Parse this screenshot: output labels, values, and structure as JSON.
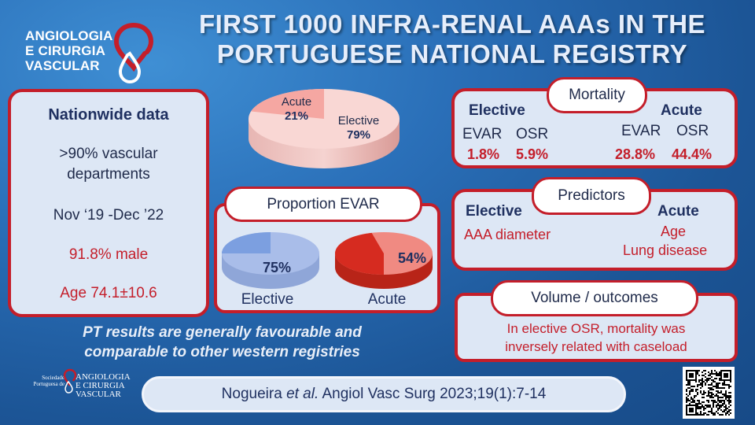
{
  "logo": {
    "lines": [
      "ANGIOLOGIA",
      "E CIRURGIA",
      "VASCULAR"
    ]
  },
  "title": {
    "line1": "FIRST 1000 INFRA-RENAL AAAs IN THE",
    "line2": "PORTUGUESE NATIONAL REGISTRY"
  },
  "nationwide": {
    "heading": "Nationwide data",
    "departments_line1": ">90% vascular",
    "departments_line2": "departments",
    "period": "Nov ‘19 -Dec ’22",
    "male": "91.8% male",
    "age": "Age 74.1±10.6"
  },
  "admission_pie": {
    "slices": [
      {
        "label": "Acute",
        "value_text": "21%",
        "value": 21,
        "color": "#f5a7a2"
      },
      {
        "label": "Elective",
        "value_text": "79%",
        "value": 79,
        "color": "#f9d7d4"
      }
    ]
  },
  "proportion_evar": {
    "title": "Proportion EVAR",
    "elective": {
      "label": "Elective",
      "value_text": "75%",
      "value": 75,
      "color": "#a9bde9",
      "accent": "#7c9fe0"
    },
    "acute": {
      "label": "Acute",
      "value_text": "54%",
      "value": 54,
      "color": "#f08a82",
      "accent": "#d62b20"
    }
  },
  "mortality": {
    "title": "Mortality",
    "elective": {
      "label": "Elective",
      "evar_label": "EVAR",
      "osr_label": "OSR",
      "evar": "1.8%",
      "osr": "5.9%"
    },
    "acute": {
      "label": "Acute",
      "evar_label": "EVAR",
      "osr_label": "OSR",
      "evar": "28.8%",
      "osr": "44.4%"
    }
  },
  "predictors": {
    "title": "Predictors",
    "elective": {
      "label": "Elective",
      "items": [
        "AAA diameter"
      ]
    },
    "acute": {
      "label": "Acute",
      "items": [
        "Age",
        "Lung disease"
      ]
    }
  },
  "volume": {
    "title": "Volume / outcomes",
    "line1": "In elective OSR, mortality was",
    "line2": "inversely related with caseload"
  },
  "conclusion": {
    "line1": "PT results are generally favourable and",
    "line2": "comparable to other western registries"
  },
  "citation": {
    "authors": "Nogueira ",
    "etal": "et al.",
    "rest": " Angiol Vasc Surg 2023;19(1):7-14"
  },
  "society_logo": {
    "small1": "Sociedade",
    "small2": "Portuguesa de",
    "lines": [
      "ANGIOLOGIA",
      "E CIRURGIA",
      "VASCULAR"
    ]
  },
  "colors": {
    "accent_red": "#c41e2a",
    "navy": "#1f3060",
    "card_bg": "#dde7f5"
  },
  "icons": {
    "logo": "droplet-pin-icon",
    "qr": "qr-code-icon"
  }
}
